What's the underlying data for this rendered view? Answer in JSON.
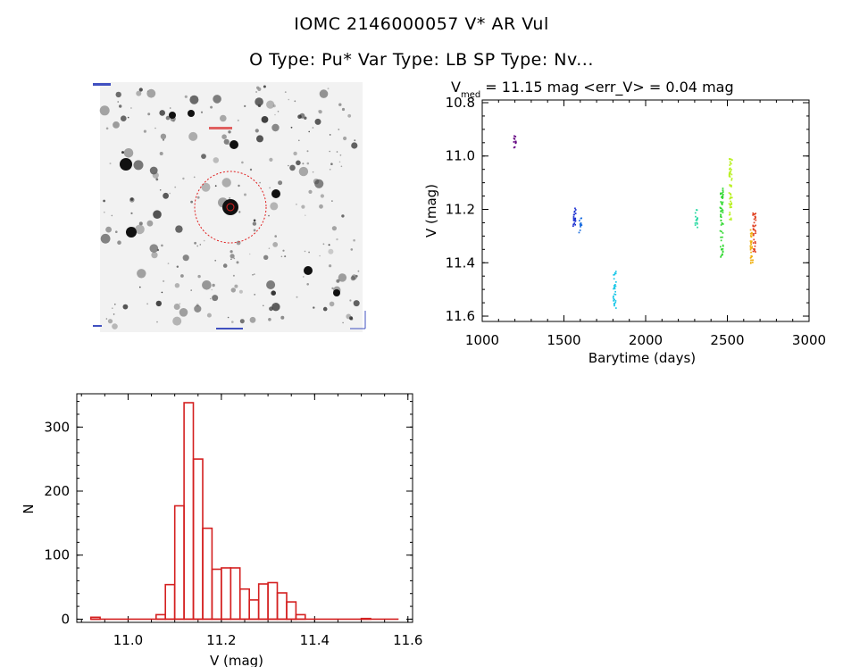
{
  "header": {
    "title_line1": "IOMC 2146000057    V* AR Vul",
    "title_line2": "O Type: Pu*  Var Type: LB  SP Type: Nv..."
  },
  "image_panel": {
    "description_icon": "star-field-thumbnail",
    "target_marker_color": "#e02020",
    "label_color": "#2030c0"
  },
  "chart_data": [
    {
      "type": "scatter",
      "title_prefix": "V",
      "title_subscript": "med",
      "title_rest": " = 11.15 mag <err_V> = 0.04 mag",
      "xlabel": "Barytime (days)",
      "ylabel": "V (mag)",
      "xlim": [
        1000,
        3000
      ],
      "ylim": [
        11.62,
        10.79
      ],
      "y_inverted": true,
      "xticks": [
        "1000",
        "1500",
        "2000",
        "2500",
        "3000"
      ],
      "yticks": [
        "10.8",
        "11.0",
        "11.2",
        "11.4",
        "11.6"
      ],
      "series": [
        {
          "color": "#60007f",
          "x": 1200,
          "y_range": [
            10.92,
            10.97
          ]
        },
        {
          "color": "#1a2fd0",
          "x": 1565,
          "y_range": [
            11.19,
            11.28
          ]
        },
        {
          "color": "#1e6fe0",
          "x": 1600,
          "y_range": [
            11.23,
            11.29
          ]
        },
        {
          "color": "#1fc8e8",
          "x": 1810,
          "y_range": [
            11.43,
            11.57
          ]
        },
        {
          "color": "#22d8a0",
          "x": 2310,
          "y_range": [
            11.2,
            11.27
          ]
        },
        {
          "color": "#30d830",
          "x": 2465,
          "y_range": [
            11.12,
            11.38
          ]
        },
        {
          "color": "#b8f020",
          "x": 2520,
          "y_range": [
            11.01,
            11.24
          ]
        },
        {
          "color": "#f0b010",
          "x": 2648,
          "y_range": [
            11.27,
            11.41
          ]
        },
        {
          "color": "#e04020",
          "x": 2665,
          "y_range": [
            11.21,
            11.36
          ]
        }
      ]
    },
    {
      "type": "bar",
      "xlabel": "V (mag)",
      "ylabel": "N",
      "xlim": [
        10.89,
        11.61
      ],
      "ylim": [
        -5,
        352
      ],
      "xticks": [
        "11.0",
        "11.2",
        "11.4",
        "11.6"
      ],
      "yticks": [
        "0",
        "100",
        "200",
        "300"
      ],
      "bin_width": 0.02,
      "bin_start": [
        10.92,
        10.96,
        11.04,
        11.06,
        11.08,
        11.1,
        11.12,
        11.14,
        11.16,
        11.18,
        11.2,
        11.22,
        11.24,
        11.26,
        11.28,
        11.3,
        11.32,
        11.34,
        11.36,
        11.38,
        11.4,
        11.42,
        11.44,
        11.46,
        11.48,
        11.5,
        11.52,
        11.54
      ],
      "values": [
        3,
        0,
        0,
        7,
        54,
        177,
        338,
        250,
        142,
        78,
        80,
        80,
        47,
        30,
        55,
        57,
        41,
        27,
        7,
        0,
        0,
        0,
        0,
        0,
        0,
        1,
        0,
        0
      ],
      "color": "#d42020"
    }
  ]
}
